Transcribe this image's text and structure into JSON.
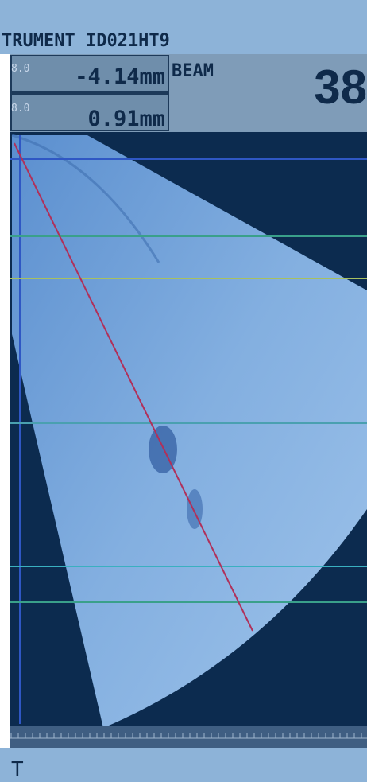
{
  "header": {
    "title": "TRUMENT ID021HT9"
  },
  "readings": [
    {
      "gain": "8.0",
      "value": "-4.14mm"
    },
    {
      "gain": "8.0",
      "value": "0.91mm"
    }
  ],
  "beam": {
    "label": "BEAM",
    "value": "38"
  },
  "footer": {
    "text": "T"
  }
}
